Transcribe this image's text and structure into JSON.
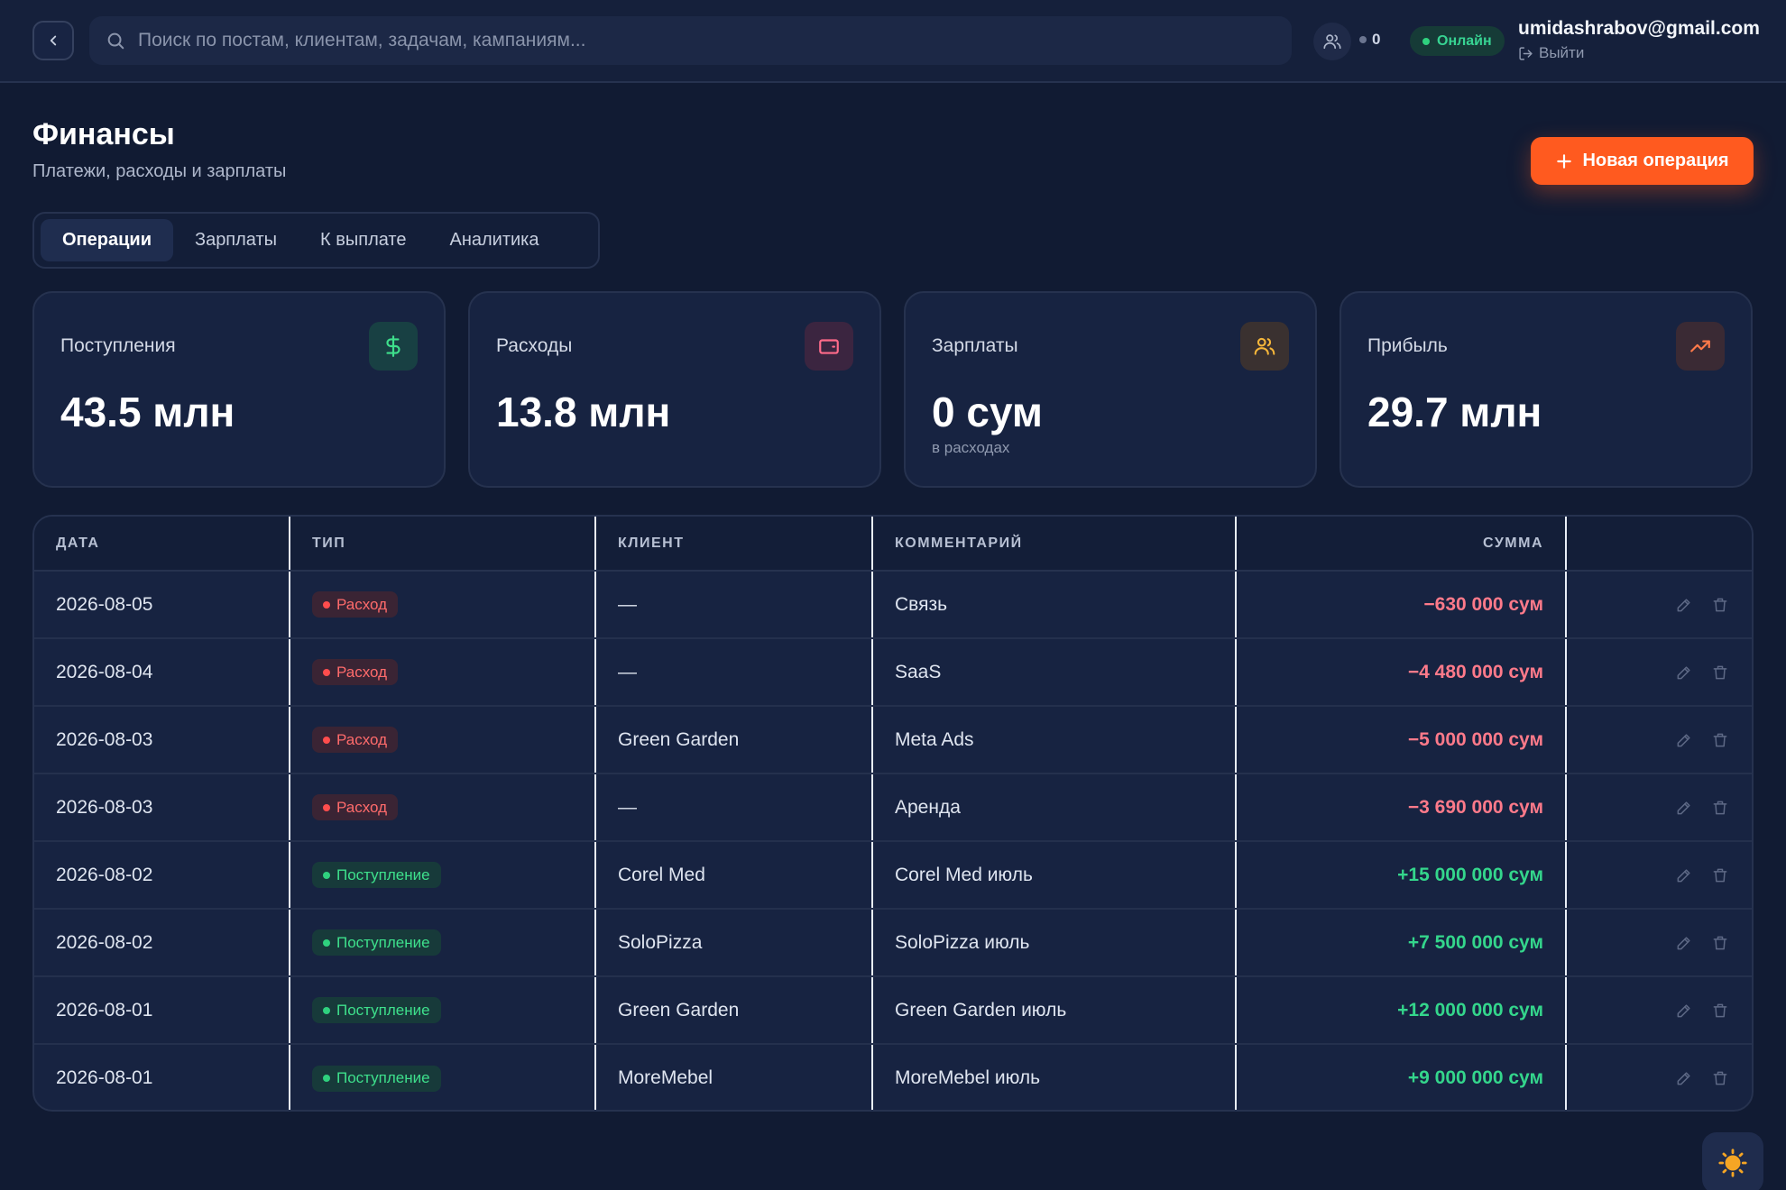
{
  "topbar": {
    "search_placeholder": "Поиск по постам, клиентам, задачам, кампаниям...",
    "users_count": "0",
    "online_label": "Онлайн",
    "user_email": "umidashrabov@gmail.com",
    "logout_label": "Выйти"
  },
  "header": {
    "title": "Финансы",
    "subtitle": "Платежи, расходы и зарплаты",
    "new_operation_label": "Новая операция"
  },
  "tabs": [
    {
      "label": "Операции",
      "active": true
    },
    {
      "label": "Зарплаты",
      "active": false
    },
    {
      "label": "К выплате",
      "active": false
    },
    {
      "label": "Аналитика",
      "active": false
    }
  ],
  "stats": [
    {
      "label": "Поступления",
      "value": "43.5 млн",
      "note": "",
      "icon": "dollar-icon",
      "icon_color": "#3ee08c",
      "icon_bg": "#184043"
    },
    {
      "label": "Расходы",
      "value": "13.8 млн",
      "note": "",
      "icon": "wallet-icon",
      "icon_color": "#ff6b8a",
      "icon_bg": "#3b2540"
    },
    {
      "label": "Зарплаты",
      "value": "0 сум",
      "note": "в расходах",
      "icon": "users-icon",
      "icon_color": "#f5b63a",
      "icon_bg": "#3a3130"
    },
    {
      "label": "Прибыль",
      "value": "29.7 млн",
      "note": "",
      "icon": "trend-up-icon",
      "icon_color": "#ff7a4a",
      "icon_bg": "#3a2a34"
    }
  ],
  "table": {
    "headers": {
      "date": "ДАТА",
      "type": "ТИП",
      "client": "КЛИЕНТ",
      "comment": "КОММЕНТАРИЙ",
      "amount": "СУММА"
    },
    "rows": [
      {
        "date": "2026-08-05",
        "type": "Расход",
        "kind": "expense",
        "client": "—",
        "comment": "Связь",
        "amount": "−630 000 сум"
      },
      {
        "date": "2026-08-04",
        "type": "Расход",
        "kind": "expense",
        "client": "—",
        "comment": "SaaS",
        "amount": "−4 480 000 сум"
      },
      {
        "date": "2026-08-03",
        "type": "Расход",
        "kind": "expense",
        "client": "Green Garden",
        "comment": "Meta Ads",
        "amount": "−5 000 000 сум"
      },
      {
        "date": "2026-08-03",
        "type": "Расход",
        "kind": "expense",
        "client": "—",
        "comment": "Аренда",
        "amount": "−3 690 000 сум"
      },
      {
        "date": "2026-08-02",
        "type": "Поступление",
        "kind": "income",
        "client": "Corel Med",
        "comment": "Corel Med июль",
        "amount": "+15 000 000 сум"
      },
      {
        "date": "2026-08-02",
        "type": "Поступление",
        "kind": "income",
        "client": "SoloPizza",
        "comment": "SoloPizza июль",
        "amount": "+7 500 000 сум"
      },
      {
        "date": "2026-08-01",
        "type": "Поступление",
        "kind": "income",
        "client": "Green Garden",
        "comment": "Green Garden июль",
        "amount": "+12 000 000 сум"
      },
      {
        "date": "2026-08-01",
        "type": "Поступление",
        "kind": "income",
        "client": "MoreMebel",
        "comment": "MoreMebel июль",
        "amount": "+9 000 000 сум"
      }
    ]
  },
  "colors": {
    "accent": "#ff5a1f",
    "background": "#111b33",
    "card": "#172341",
    "income": "#34d68c",
    "expense": "#ff7a8a"
  }
}
